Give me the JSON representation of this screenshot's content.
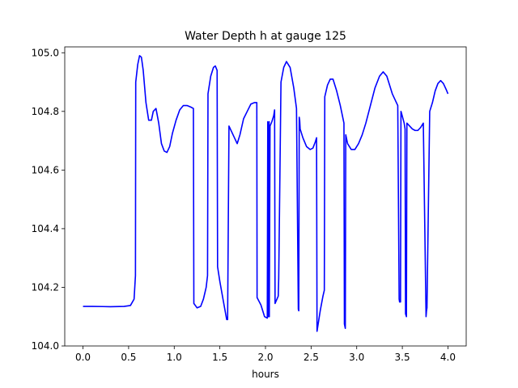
{
  "chart_data": {
    "type": "line",
    "title": "Water Depth h at gauge 125",
    "xlabel": "hours",
    "ylabel": "",
    "xlim": [
      -0.2,
      4.2
    ],
    "ylim": [
      104.0,
      105.02
    ],
    "xticks": [
      0.0,
      0.5,
      1.0,
      1.5,
      2.0,
      2.5,
      3.0,
      3.5,
      4.0
    ],
    "xtick_labels": [
      "0.0",
      "0.5",
      "1.0",
      "1.5",
      "2.0",
      "2.5",
      "3.0",
      "3.5",
      "4.0"
    ],
    "yticks": [
      104.0,
      104.2,
      104.4,
      104.6,
      104.8,
      105.0
    ],
    "ytick_labels": [
      "104.0",
      "104.2",
      "104.4",
      "104.6",
      "104.8",
      "105.0"
    ],
    "grid": false,
    "series": [
      {
        "color": "#0000ff",
        "x": [
          0.0,
          0.1,
          0.3,
          0.45,
          0.52,
          0.56,
          0.575,
          0.578,
          0.6,
          0.62,
          0.64,
          0.66,
          0.69,
          0.72,
          0.75,
          0.77,
          0.8,
          0.83,
          0.86,
          0.89,
          0.92,
          0.95,
          0.98,
          1.02,
          1.06,
          1.1,
          1.14,
          1.18,
          1.21,
          1.215,
          1.25,
          1.29,
          1.32,
          1.35,
          1.365,
          1.37,
          1.4,
          1.43,
          1.45,
          1.47,
          1.475,
          1.5,
          1.54,
          1.575,
          1.585,
          1.6,
          1.63,
          1.66,
          1.69,
          1.72,
          1.76,
          1.8,
          1.84,
          1.88,
          1.905,
          1.908,
          1.95,
          1.99,
          2.02,
          2.025,
          2.028,
          2.033,
          2.035,
          2.04,
          2.042,
          2.05,
          2.07,
          2.09,
          2.1,
          2.105,
          2.14,
          2.145,
          2.17,
          2.2,
          2.23,
          2.27,
          2.31,
          2.34,
          2.36,
          2.365,
          2.37,
          2.375,
          2.38,
          2.41,
          2.45,
          2.49,
          2.52,
          2.545,
          2.56,
          2.565,
          2.6,
          2.63,
          2.645,
          2.65,
          2.68,
          2.71,
          2.74,
          2.78,
          2.82,
          2.86,
          2.865,
          2.875,
          2.88,
          2.9,
          2.94,
          2.98,
          3.02,
          3.06,
          3.1,
          3.15,
          3.2,
          3.25,
          3.29,
          3.33,
          3.36,
          3.39,
          3.42,
          3.45,
          3.465,
          3.47,
          3.48,
          3.485,
          3.49,
          3.52,
          3.53,
          3.535,
          3.545,
          3.55,
          3.58,
          3.61,
          3.64,
          3.67,
          3.7,
          3.73,
          3.76,
          3.765,
          3.77,
          3.8,
          3.83,
          3.86,
          3.89,
          3.92,
          3.95,
          3.98,
          4.0
        ],
        "y": [
          104.135,
          104.135,
          104.134,
          104.135,
          104.138,
          104.16,
          104.24,
          104.9,
          104.96,
          104.99,
          104.985,
          104.94,
          104.83,
          104.77,
          104.77,
          104.8,
          104.81,
          104.76,
          104.69,
          104.665,
          104.66,
          104.68,
          104.725,
          104.77,
          104.805,
          104.82,
          104.82,
          104.815,
          104.81,
          104.145,
          104.13,
          104.135,
          104.16,
          104.2,
          104.24,
          104.86,
          104.92,
          104.95,
          104.955,
          104.94,
          104.27,
          104.22,
          104.15,
          104.09,
          104.09,
          104.75,
          104.73,
          104.71,
          104.69,
          104.72,
          104.775,
          104.8,
          104.825,
          104.83,
          104.83,
          104.165,
          104.14,
          104.1,
          104.095,
          104.765,
          104.1,
          104.76,
          104.1,
          104.765,
          104.1,
          104.75,
          104.765,
          104.785,
          104.805,
          104.145,
          104.17,
          104.23,
          104.9,
          104.95,
          104.97,
          104.95,
          104.88,
          104.81,
          104.125,
          104.12,
          104.78,
          104.77,
          104.74,
          104.71,
          104.68,
          104.67,
          104.675,
          104.695,
          104.71,
          104.05,
          104.12,
          104.17,
          104.19,
          104.85,
          104.89,
          104.91,
          104.91,
          104.87,
          104.82,
          104.76,
          104.075,
          104.06,
          104.72,
          104.69,
          104.67,
          104.67,
          104.69,
          104.72,
          104.76,
          104.82,
          104.88,
          104.92,
          104.935,
          104.92,
          104.89,
          104.86,
          104.84,
          104.82,
          104.16,
          104.15,
          104.15,
          104.8,
          104.795,
          104.76,
          104.74,
          104.11,
          104.1,
          104.76,
          104.75,
          104.74,
          104.735,
          104.735,
          104.745,
          104.76,
          104.1,
          104.12,
          104.13,
          104.8,
          104.83,
          104.87,
          104.895,
          104.905,
          104.895,
          104.875,
          104.86
        ]
      }
    ]
  }
}
